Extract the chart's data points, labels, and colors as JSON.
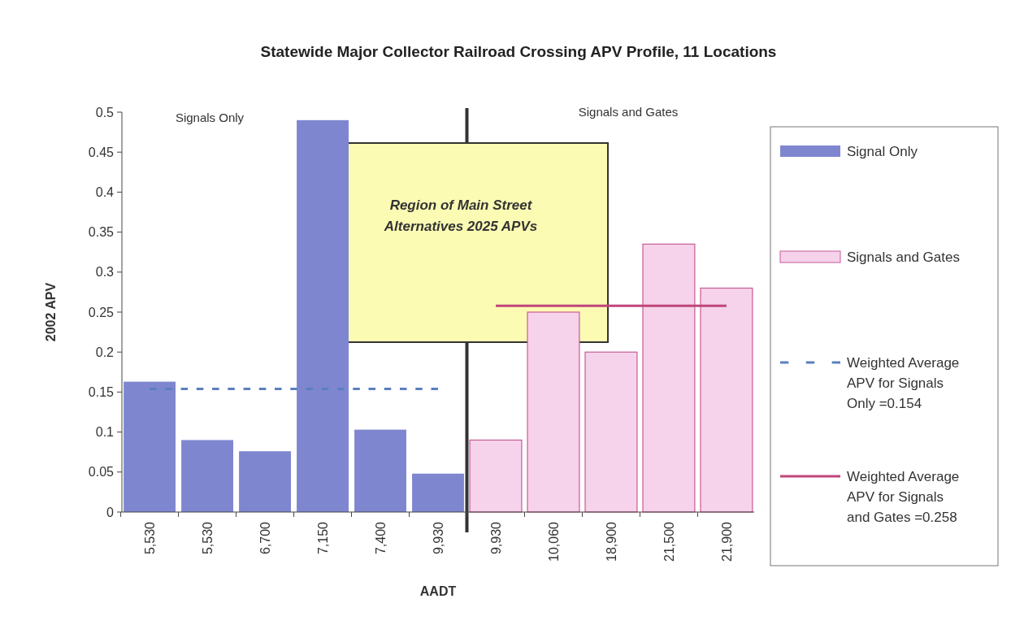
{
  "chart_data": {
    "type": "bar",
    "title": "Statewide Major Collector Railroad Crossing APV Profile, 11 Locations",
    "xlabel": "AADT",
    "ylabel": "2002 APV",
    "categories": [
      "5,530",
      "5,530",
      "6,700",
      "7,150",
      "7,400",
      "9,930",
      "9,930",
      "10,060",
      "18,900",
      "21,500",
      "21,900"
    ],
    "series": [
      {
        "name": "Signal Only",
        "color": "#7f86d0",
        "values": [
          0.163,
          0.09,
          0.076,
          0.49,
          0.103,
          0.048,
          null,
          null,
          null,
          null,
          null
        ]
      },
      {
        "name": "Signals and Gates",
        "color": "#f6d3ea",
        "values": [
          null,
          null,
          null,
          null,
          null,
          null,
          0.09,
          0.25,
          0.2,
          0.335,
          0.28
        ]
      },
      {
        "name": "Weighted Average APV for Signals Only =0.154",
        "type": "line",
        "line_style": "dashed",
        "color": "#5b7fc0",
        "values": [
          0.154,
          0.154,
          0.154,
          0.154,
          0.154,
          0.154,
          null,
          null,
          null,
          null,
          null
        ]
      },
      {
        "name": "Weighted Average APV for Signals and Gates =0.258",
        "type": "line",
        "line_style": "solid",
        "color": "#c0457a",
        "values": [
          null,
          null,
          null,
          null,
          null,
          null,
          0.258,
          0.258,
          0.258,
          0.258,
          0.258
        ]
      }
    ],
    "ylim": [
      0,
      0.5
    ],
    "yticks": [
      0,
      0.05,
      0.1,
      0.15,
      0.2,
      0.25,
      0.3,
      0.35,
      0.4,
      0.45,
      0.5
    ],
    "annotations": [
      "Signals Only",
      "Signals and Gates",
      "Region of Main Street Alternatives 2025 APVs"
    ],
    "legend": "right"
  }
}
